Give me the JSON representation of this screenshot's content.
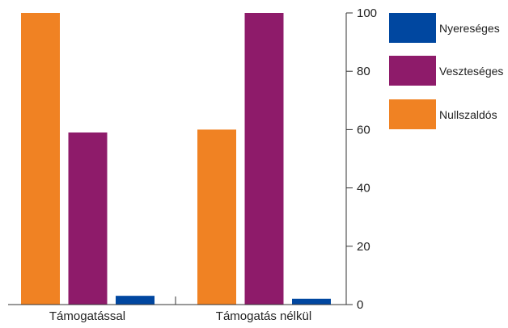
{
  "chart_data": {
    "type": "bar",
    "categories": [
      "Támogatással",
      "Támogatás nélkül"
    ],
    "series": [
      {
        "name": "Nullszaldós",
        "values": [
          100,
          60
        ],
        "color": "#F08223"
      },
      {
        "name": "Veszteséges",
        "values": [
          59,
          100
        ],
        "color": "#8E1B6A"
      },
      {
        "name": "Nyereséges",
        "values": [
          3,
          2
        ],
        "color": "#0047A0"
      }
    ],
    "title": "",
    "xlabel": "",
    "ylabel": "",
    "ylim": [
      0,
      100
    ],
    "yticks": [
      0,
      20,
      40,
      60,
      80,
      100
    ],
    "y_axis_side": "right",
    "grid": false,
    "legend": {
      "position": "right",
      "order": [
        "Nyereséges",
        "Veszteséges",
        "Nullszaldós"
      ]
    }
  }
}
